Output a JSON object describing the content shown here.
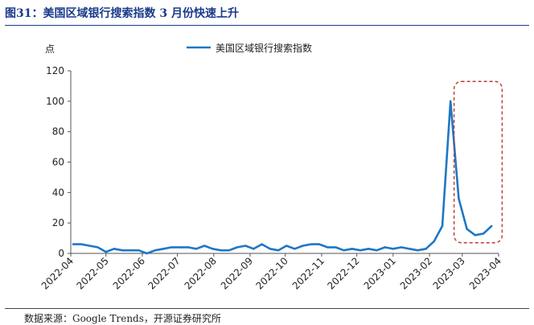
{
  "header": {
    "figure_title": "图31：美国区域银行搜索指数 3 月份快速上升"
  },
  "footer": {
    "source": "数据来源：Google Trends，开源证券研究所"
  },
  "colors": {
    "title": "#1a3a8a",
    "series": "#1f77c4",
    "highlight_box": "#c0392b"
  },
  "chart_data": {
    "type": "line",
    "ylabel": "点",
    "ylim": [
      0,
      120
    ],
    "yticks": [
      0,
      20,
      40,
      60,
      80,
      100,
      120
    ],
    "xlim": [
      "2022-04-01",
      "2023-04-01"
    ],
    "xticks": [
      "2022-04",
      "2022-05",
      "2022-06",
      "2022-07",
      "2022-08",
      "2022-09",
      "2022-10",
      "2022-11",
      "2022-12",
      "2023-01",
      "2023-02",
      "2023-03",
      "2023-04"
    ],
    "grid": false,
    "legend_position": "top-center",
    "series": [
      {
        "name": "美国区域银行搜索指数",
        "x": [
          "2022-04-03",
          "2022-04-10",
          "2022-04-17",
          "2022-04-24",
          "2022-05-01",
          "2022-05-08",
          "2022-05-15",
          "2022-05-22",
          "2022-05-29",
          "2022-06-05",
          "2022-06-12",
          "2022-06-19",
          "2022-06-26",
          "2022-07-03",
          "2022-07-10",
          "2022-07-17",
          "2022-07-24",
          "2022-07-31",
          "2022-08-07",
          "2022-08-14",
          "2022-08-21",
          "2022-08-28",
          "2022-09-04",
          "2022-09-11",
          "2022-09-18",
          "2022-09-25",
          "2022-10-02",
          "2022-10-09",
          "2022-10-16",
          "2022-10-23",
          "2022-10-30",
          "2022-11-06",
          "2022-11-13",
          "2022-11-20",
          "2022-11-27",
          "2022-12-04",
          "2022-12-11",
          "2022-12-18",
          "2022-12-25",
          "2023-01-01",
          "2023-01-08",
          "2023-01-15",
          "2023-01-22",
          "2023-01-29",
          "2023-02-05",
          "2023-02-12",
          "2023-02-19",
          "2023-02-26",
          "2023-03-05",
          "2023-03-12",
          "2023-03-19",
          "2023-03-26",
          "2023-04-02",
          "2023-04-09"
        ],
        "values": [
          6,
          6,
          5,
          4,
          1,
          3,
          2,
          2,
          2,
          0,
          2,
          3,
          4,
          4,
          4,
          3,
          5,
          3,
          2,
          2,
          4,
          5,
          3,
          6,
          3,
          2,
          5,
          3,
          5,
          6,
          6,
          4,
          4,
          2,
          3,
          2,
          3,
          2,
          4,
          3,
          4,
          3,
          2,
          3,
          8,
          18,
          100,
          36,
          16,
          12,
          13,
          18,
          null,
          null
        ]
      }
    ],
    "annotations": [
      {
        "type": "dashed-rounded-box",
        "x_range": [
          "2023-02-22",
          "2023-04-04"
        ],
        "y_range": [
          7,
          113
        ]
      }
    ]
  }
}
